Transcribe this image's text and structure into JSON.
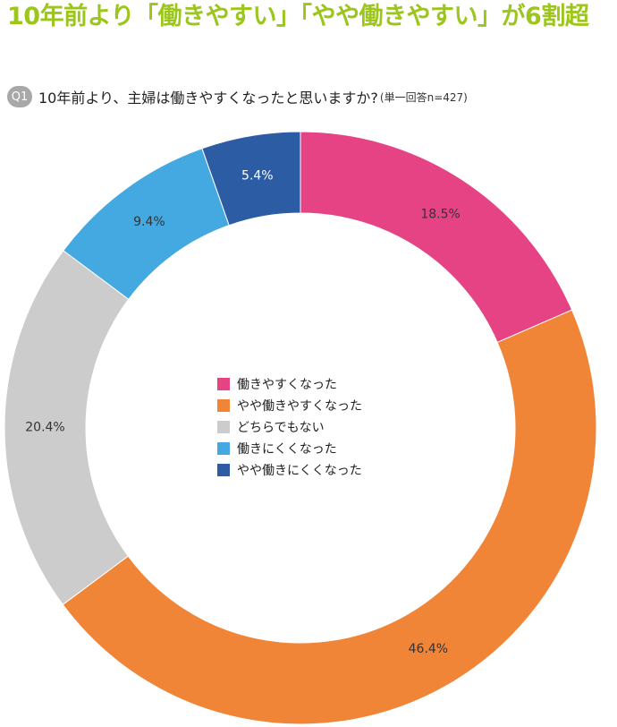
{
  "headline": "10年前より「働きやすい」「やや働きやすい」が6割超",
  "question": {
    "badge": "Q1",
    "text": "10年前より、主婦は働きやすくなったと思いますか?",
    "note": "(単一回答n=427)"
  },
  "chart_data": {
    "type": "pie",
    "variant": "donut",
    "title": "",
    "legend_position": "center",
    "slices": [
      {
        "name": "働きやすくなった",
        "value": 18.5,
        "label": "18.5%",
        "color": "#e64385"
      },
      {
        "name": "やや働きやすくなった",
        "value": 46.4,
        "label": "46.4%",
        "color": "#f08537"
      },
      {
        "name": "どちらでもない",
        "value": 20.4,
        "label": "20.4%",
        "color": "#cccccc"
      },
      {
        "name": "働きにくくなった",
        "value": 9.4,
        "label": "9.4%",
        "color": "#45a9e1"
      },
      {
        "name": "やや働きにくくなった",
        "value": 5.4,
        "label": "5.4%",
        "color": "#2b5ca4"
      }
    ]
  }
}
